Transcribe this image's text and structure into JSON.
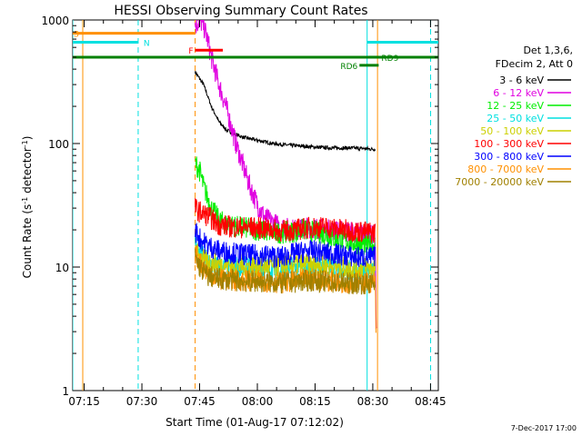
{
  "chart_data": {
    "type": "line",
    "title": "HESSI Observing Summary Count Rates",
    "xlabel": "Start Time (01-Aug-17 07:12:02)",
    "ylabel_main": "Count Rate (s",
    "ylabel_sup1": "-1",
    "ylabel_mid": " detector",
    "ylabel_sup2": "-1",
    "ylabel_end": ")",
    "yscale": "log",
    "ylim": [
      1,
      1000
    ],
    "xlim_minutes": [
      0,
      95
    ],
    "x_origin": "07:12:02",
    "y_ticks": [
      {
        "value": 1,
        "label": "1"
      },
      {
        "value": 10,
        "label": "10"
      },
      {
        "value": 100,
        "label": "100"
      },
      {
        "value": 1000,
        "label": "1000"
      }
    ],
    "x_ticks": [
      {
        "t": 2.97,
        "label": "07:15"
      },
      {
        "t": 17.97,
        "label": "07:30"
      },
      {
        "t": 32.97,
        "label": "07:45"
      },
      {
        "t": 47.97,
        "label": "08:00"
      },
      {
        "t": 62.97,
        "label": "08:15"
      },
      {
        "t": 77.97,
        "label": "08:30"
      },
      {
        "t": 92.97,
        "label": "08:45"
      }
    ],
    "legend_header": [
      "Det 1,3,6,",
      "FDecim 2, Att 0"
    ],
    "series": [
      {
        "name": "3 - 6 keV",
        "color": "#000000",
        "points": [
          [
            31.8,
            380
          ],
          [
            34,
            300
          ],
          [
            36,
            200
          ],
          [
            38,
            150
          ],
          [
            40,
            128
          ],
          [
            44,
            113
          ],
          [
            48,
            106
          ],
          [
            52,
            100
          ],
          [
            56,
            97
          ],
          [
            60,
            95
          ],
          [
            64,
            93
          ],
          [
            68,
            92
          ],
          [
            72,
            92
          ],
          [
            76,
            91
          ],
          [
            78,
            90
          ],
          [
            78.6,
            90
          ]
        ]
      },
      {
        "name": "6 - 12 keV",
        "color": "#e000e0",
        "points": [
          [
            31.8,
            900
          ],
          [
            33,
            1000
          ],
          [
            34,
            900
          ],
          [
            35,
            700
          ],
          [
            36,
            500
          ],
          [
            38,
            300
          ],
          [
            40,
            190
          ],
          [
            42,
            110
          ],
          [
            44,
            70
          ],
          [
            46,
            45
          ],
          [
            48,
            32
          ],
          [
            50,
            25
          ],
          [
            54,
            21
          ],
          [
            58,
            20
          ],
          [
            62,
            21
          ],
          [
            66,
            20
          ],
          [
            70,
            19.5
          ],
          [
            74,
            19
          ],
          [
            78,
            18
          ],
          [
            78.6,
            18
          ],
          [
            78.8,
            4
          ],
          [
            79,
            2.5
          ]
        ]
      },
      {
        "name": "12 - 25 keV",
        "color": "#00ee00",
        "points": [
          [
            31.8,
            70
          ],
          [
            33,
            60
          ],
          [
            34,
            45
          ],
          [
            36,
            30
          ],
          [
            38,
            24
          ],
          [
            40,
            22
          ],
          [
            44,
            21
          ],
          [
            48,
            20
          ],
          [
            52,
            19
          ],
          [
            56,
            19
          ],
          [
            60,
            20
          ],
          [
            64,
            19
          ],
          [
            68,
            17
          ],
          [
            72,
            16
          ],
          [
            76,
            15
          ],
          [
            78.6,
            15
          ]
        ]
      },
      {
        "name": "25 - 50 keV",
        "color": "#00e0e0",
        "points": [
          [
            31.8,
            16
          ],
          [
            33,
            13
          ],
          [
            35,
            11
          ],
          [
            38,
            10
          ],
          [
            42,
            10
          ],
          [
            46,
            10
          ],
          [
            50,
            9.8
          ],
          [
            54,
            9.5
          ],
          [
            58,
            10
          ],
          [
            62,
            10
          ],
          [
            66,
            10
          ],
          [
            70,
            9.5
          ],
          [
            74,
            9.3
          ],
          [
            78.6,
            9.3
          ]
        ]
      },
      {
        "name": "50 - 100 keV",
        "color": "#ccd000",
        "points": [
          [
            31.8,
            14
          ],
          [
            33,
            12
          ],
          [
            35,
            11
          ],
          [
            38,
            10.5
          ],
          [
            42,
            10.3
          ],
          [
            46,
            10.2
          ],
          [
            50,
            10.2
          ],
          [
            54,
            10
          ],
          [
            58,
            10.5
          ],
          [
            62,
            10.5
          ],
          [
            66,
            10.2
          ],
          [
            70,
            10
          ],
          [
            74,
            9.8
          ],
          [
            78.6,
            10
          ]
        ]
      },
      {
        "name": "100 - 300 keV",
        "color": "#ff0000",
        "points": [
          [
            31.8,
            30
          ],
          [
            33,
            28
          ],
          [
            35,
            26
          ],
          [
            38,
            22
          ],
          [
            42,
            21
          ],
          [
            46,
            21
          ],
          [
            50,
            20.5
          ],
          [
            54,
            19.5
          ],
          [
            58,
            20
          ],
          [
            62,
            21
          ],
          [
            66,
            21
          ],
          [
            70,
            20
          ],
          [
            74,
            19.5
          ],
          [
            78.6,
            19
          ]
        ]
      },
      {
        "name": "300 - 800 keV",
        "color": "#0000ff",
        "points": [
          [
            31.8,
            20
          ],
          [
            33,
            17
          ],
          [
            35,
            15
          ],
          [
            38,
            13.5
          ],
          [
            42,
            13
          ],
          [
            46,
            12.5
          ],
          [
            50,
            12.5
          ],
          [
            54,
            12
          ],
          [
            58,
            13
          ],
          [
            62,
            13.5
          ],
          [
            66,
            13
          ],
          [
            70,
            12.5
          ],
          [
            74,
            12
          ],
          [
            78.6,
            12
          ]
        ]
      },
      {
        "name": "800 - 7000 keV",
        "color": "#ff9000",
        "points": [
          [
            31.8,
            13
          ],
          [
            33,
            11
          ],
          [
            35,
            9
          ],
          [
            38,
            8
          ],
          [
            42,
            7.8
          ],
          [
            46,
            7.8
          ],
          [
            50,
            7.7
          ],
          [
            54,
            7.5
          ],
          [
            58,
            7.8
          ],
          [
            62,
            8
          ],
          [
            66,
            7.8
          ],
          [
            70,
            7.5
          ],
          [
            74,
            7.5
          ],
          [
            78.6,
            7.5
          ],
          [
            78.8,
            3
          ]
        ]
      },
      {
        "name": "7000 - 20000 keV",
        "color": "#a08000",
        "points": [
          [
            31.8,
            12
          ],
          [
            33,
            10
          ],
          [
            35,
            8.5
          ],
          [
            38,
            8
          ],
          [
            42,
            7.8
          ],
          [
            46,
            7.6
          ],
          [
            50,
            7.6
          ],
          [
            54,
            7.4
          ],
          [
            58,
            7.6
          ],
          [
            62,
            7.8
          ],
          [
            66,
            7.6
          ],
          [
            70,
            7.4
          ],
          [
            74,
            7.4
          ],
          [
            78.6,
            7.3
          ]
        ]
      }
    ],
    "vertical_lines": [
      {
        "t": 0.0,
        "color": "#00e0e0",
        "style": "solid"
      },
      {
        "t": 2.6,
        "color": "#ff9000",
        "style": "solid"
      },
      {
        "t": 17.0,
        "color": "#00e0e0",
        "style": "dashed"
      },
      {
        "t": 31.8,
        "color": "#ff9000",
        "style": "dashed"
      },
      {
        "t": 76.5,
        "color": "#00e0e0",
        "style": "solid"
      },
      {
        "t": 79.2,
        "color": "#ff9000",
        "style": "solid"
      },
      {
        "t": 93.0,
        "color": "#00e0e0",
        "style": "dashed"
      }
    ],
    "flag_bars": [
      {
        "label": "S",
        "t0": 0.0,
        "t1": 31.8,
        "color": "#ff9000",
        "y": 780
      },
      {
        "label": "N",
        "t0": 0.0,
        "t1": 17.0,
        "color": "#00e0e0",
        "y": 660
      },
      {
        "label": "",
        "t0": 76.5,
        "t1": 95.0,
        "color": "#00e0e0",
        "y": 660
      },
      {
        "label": "F",
        "t0": 31.8,
        "t1": 39.0,
        "color": "#ff0000",
        "y": 570
      },
      {
        "label": "",
        "t0": 0.0,
        "t1": 95.0,
        "color": "#008000",
        "y": 500
      },
      {
        "label": "RD6",
        "t0": 74.5,
        "t1": 79.5,
        "color": "#008000",
        "y": 430
      },
      {
        "label": "RD9",
        "t0": 77.0,
        "t1": 79.5,
        "color": "#008000",
        "y": 500
      }
    ]
  },
  "footer_date": "7-Dec-2017 17:00"
}
